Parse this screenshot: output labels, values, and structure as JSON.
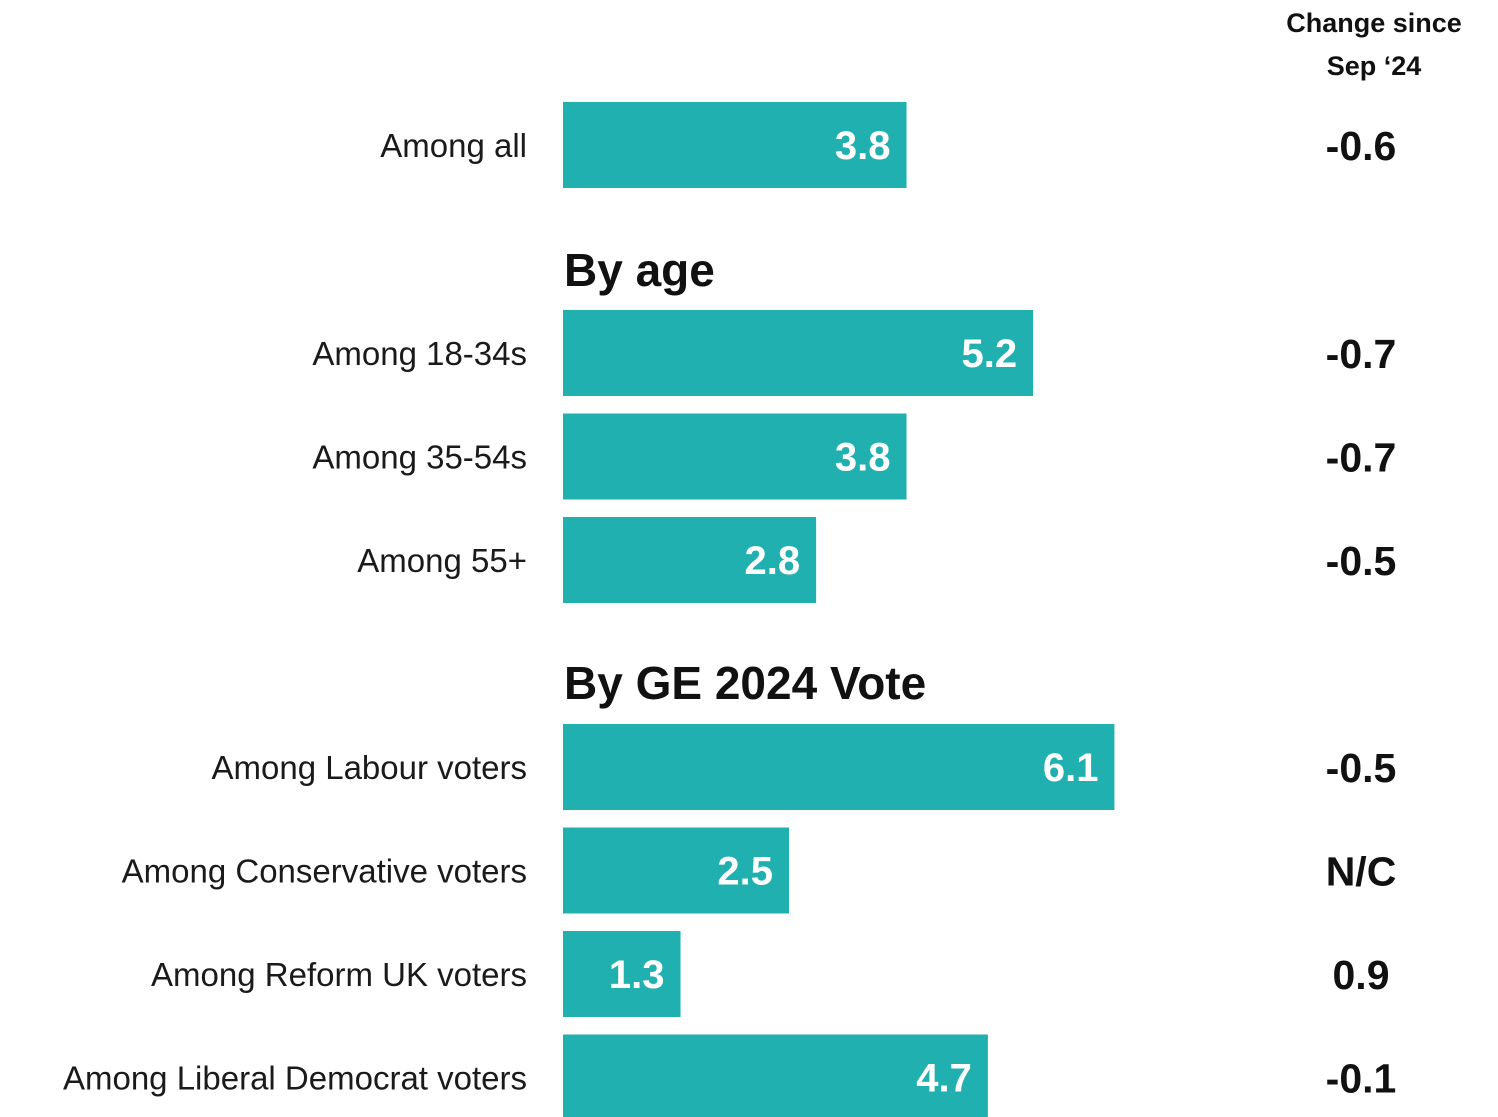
{
  "change_header": [
    "Change since",
    "Sep ‘24"
  ],
  "colors": {
    "bar": "#20b0b0",
    "bar_label": "#ffffff",
    "text": "#111111"
  },
  "chart_data": {
    "type": "bar",
    "orientation": "horizontal",
    "title": "",
    "xlabel": "",
    "ylabel": "",
    "xlim": [
      0,
      6.1
    ],
    "grid": false,
    "legend": "none",
    "sections": [
      {
        "heading": "",
        "rows": [
          {
            "label": "Among all",
            "value": 3.8,
            "value_label": "3.8",
            "change": "-0.6"
          }
        ]
      },
      {
        "heading": "By age",
        "rows": [
          {
            "label": "Among 18-34s",
            "value": 5.2,
            "value_label": "5.2",
            "change": "-0.7"
          },
          {
            "label": "Among 35-54s",
            "value": 3.8,
            "value_label": "3.8",
            "change": "-0.7"
          },
          {
            "label": "Among 55+",
            "value": 2.8,
            "value_label": "2.8",
            "change": "-0.5"
          }
        ]
      },
      {
        "heading": "By GE 2024 Vote",
        "rows": [
          {
            "label": "Among Labour voters",
            "value": 6.1,
            "value_label": "6.1",
            "change": "-0.5"
          },
          {
            "label": "Among Conservative voters",
            "value": 2.5,
            "value_label": "2.5",
            "change": "N/C"
          },
          {
            "label": "Among Reform UK voters",
            "value": 1.3,
            "value_label": "1.3",
            "change": "0.9"
          },
          {
            "label": "Among Liberal Democrat voters",
            "value": 4.7,
            "value_label": "4.7",
            "change": "-0.1"
          }
        ]
      }
    ]
  }
}
